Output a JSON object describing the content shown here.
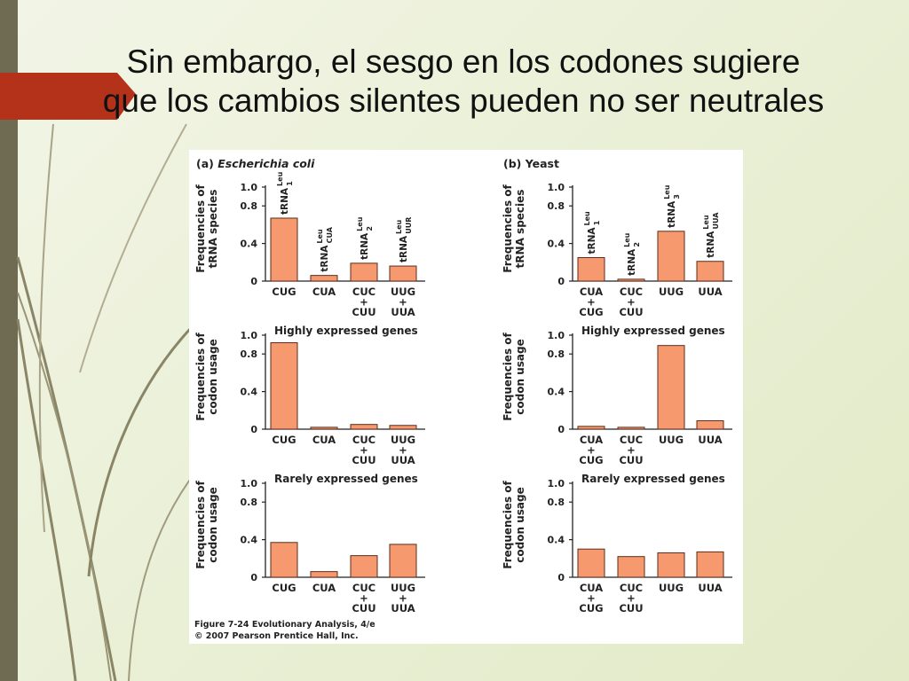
{
  "slide": {
    "title_line1": "Sin embargo, el sesgo en los codones sugiere",
    "title_line2": "que los cambios silentes pueden no ser neutrales"
  },
  "figure": {
    "bar_color": "#f6996e",
    "bar_stroke": "#5a2d1c",
    "accent_arrow_color": "#b5321a",
    "caption_line1": "Figure 7-24 Evolutionary Analysis, 4/e",
    "caption_line2": "© 2007 Pearson Prentice Hall, Inc."
  },
  "chart_data": [
    {
      "type": "bar",
      "panel_title": "(a) Escherichia coli",
      "subtitle": "",
      "ylabel": [
        "Frequencies of",
        "tRNA species"
      ],
      "ylim": [
        0,
        1.0
      ],
      "yticks": [
        0,
        0.4,
        0.8,
        1.0
      ],
      "categories": [
        [
          "CUG"
        ],
        [
          "CUA"
        ],
        [
          "CUC",
          "+",
          "CUU"
        ],
        [
          "UUG",
          "+",
          "UUA"
        ]
      ],
      "values": [
        0.67,
        0.06,
        0.19,
        0.16
      ],
      "bar_labels": [
        {
          "base": "tRNA",
          "sup": "Leu",
          "sub": "1"
        },
        {
          "base": "tRNA",
          "sup": "Leu",
          "sub": "CUA"
        },
        {
          "base": "tRNA",
          "sup": "Leu",
          "sub": "2"
        },
        {
          "base": "tRNA",
          "sup": "Leu",
          "sub": "UUR"
        }
      ]
    },
    {
      "type": "bar",
      "panel_title": "(b) Yeast",
      "subtitle": "",
      "ylabel": [
        "Frequencies of",
        "tRNA species"
      ],
      "ylim": [
        0,
        1.0
      ],
      "yticks": [
        0,
        0.4,
        0.8,
        1.0
      ],
      "categories": [
        [
          "CUA",
          "+",
          "CUG"
        ],
        [
          "CUC",
          "+",
          "CUU"
        ],
        [
          "UUG"
        ],
        [
          "UUA"
        ]
      ],
      "values": [
        0.25,
        0.02,
        0.53,
        0.21
      ],
      "bar_labels": [
        {
          "base": "tRNA",
          "sup": "Leu",
          "sub": "1"
        },
        {
          "base": "tRNA",
          "sup": "Leu",
          "sub": "2"
        },
        {
          "base": "tRNA",
          "sup": "Leu",
          "sub": "3"
        },
        {
          "base": "tRNA",
          "sup": "Leu",
          "sub": "UUA"
        }
      ]
    },
    {
      "type": "bar",
      "panel_title": "",
      "subtitle": "Highly expressed genes",
      "ylabel": [
        "Frequencies of",
        "codon usage"
      ],
      "ylim": [
        0,
        1.0
      ],
      "yticks": [
        0,
        0.4,
        0.8,
        1.0
      ],
      "categories": [
        [
          "CUG"
        ],
        [
          "CUA"
        ],
        [
          "CUC",
          "+",
          "CUU"
        ],
        [
          "UUG",
          "+",
          "UUA"
        ]
      ],
      "values": [
        0.92,
        0.02,
        0.05,
        0.04
      ],
      "bar_labels": []
    },
    {
      "type": "bar",
      "panel_title": "",
      "subtitle": "Highly expressed genes",
      "ylabel": [
        "Frequencies of",
        "codon usage"
      ],
      "ylim": [
        0,
        1.0
      ],
      "yticks": [
        0,
        0.4,
        0.8,
        1.0
      ],
      "categories": [
        [
          "CUA",
          "+",
          "CUG"
        ],
        [
          "CUC",
          "+",
          "CUU"
        ],
        [
          "UUG"
        ],
        [
          "UUA"
        ]
      ],
      "values": [
        0.03,
        0.02,
        0.89,
        0.09
      ],
      "bar_labels": []
    },
    {
      "type": "bar",
      "panel_title": "",
      "subtitle": "Rarely expressed genes",
      "ylabel": [
        "Frequencies of",
        "codon usage"
      ],
      "ylim": [
        0,
        1.0
      ],
      "yticks": [
        0,
        0.4,
        0.8,
        1.0
      ],
      "categories": [
        [
          "CUG"
        ],
        [
          "CUA"
        ],
        [
          "CUC",
          "+",
          "CUU"
        ],
        [
          "UUG",
          "+",
          "UUA"
        ]
      ],
      "values": [
        0.37,
        0.06,
        0.23,
        0.35
      ],
      "bar_labels": []
    },
    {
      "type": "bar",
      "panel_title": "",
      "subtitle": "Rarely expressed genes",
      "ylabel": [
        "Frequencies of",
        "codon usage"
      ],
      "ylim": [
        0,
        1.0
      ],
      "yticks": [
        0,
        0.4,
        0.8,
        1.0
      ],
      "categories": [
        [
          "CUA",
          "+",
          "CUG"
        ],
        [
          "CUC",
          "+",
          "CUU"
        ],
        [
          "UUG"
        ],
        [
          "UUA"
        ]
      ],
      "values": [
        0.3,
        0.22,
        0.26,
        0.27
      ],
      "bar_labels": []
    }
  ]
}
